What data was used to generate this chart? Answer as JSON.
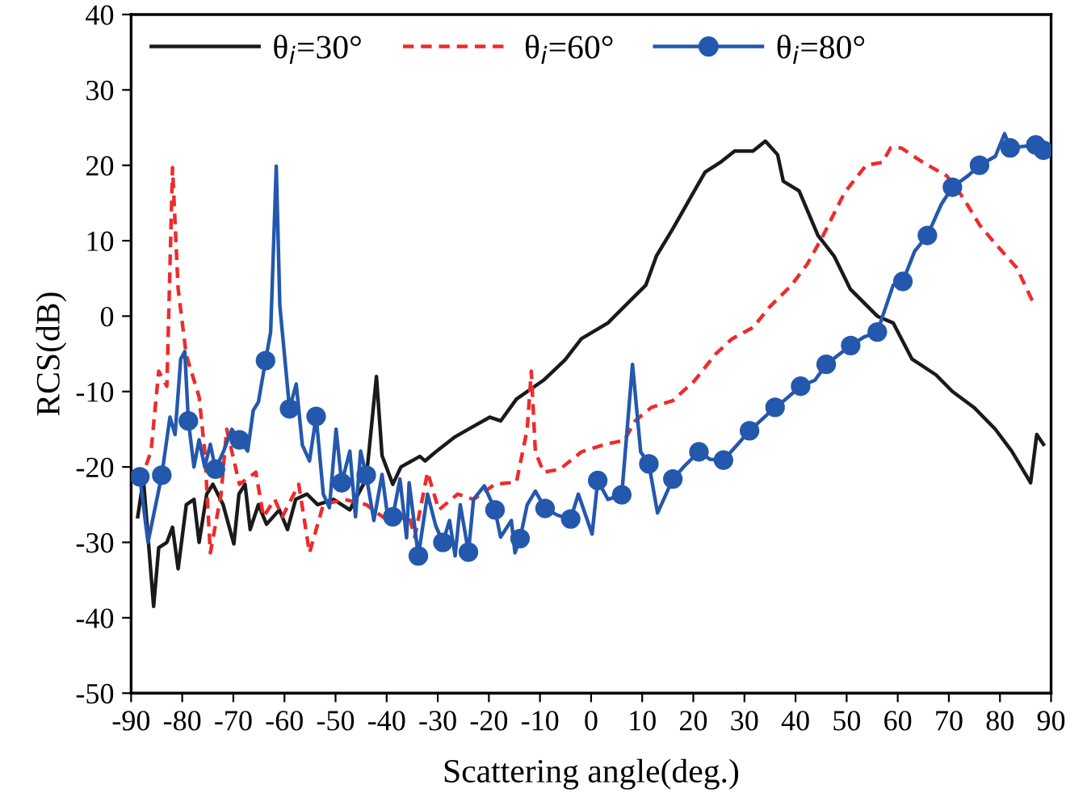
{
  "chart_data": {
    "type": "line",
    "xlabel": "Scattering angle(deg.)",
    "ylabel": "RCS(dB)",
    "xlim": [
      -90,
      90
    ],
    "xticks": [
      -90,
      -80,
      -70,
      -60,
      -50,
      -40,
      -30,
      -20,
      -10,
      0,
      10,
      20,
      30,
      40,
      50,
      60,
      70,
      80,
      90
    ],
    "ylim": [
      -50,
      40
    ],
    "yticks": [
      -50,
      -40,
      -30,
      -20,
      -10,
      0,
      10,
      20,
      30,
      40
    ],
    "grid": false,
    "legend": "top left",
    "series": [
      {
        "name": "θ$_{i}$=30°",
        "color": "#1a1a1a",
        "line_style": "solid",
        "marker": "none",
        "x": [
          -88.7,
          -87.6,
          -85.6,
          -84.6,
          -83,
          -81.9,
          -80.8,
          -79.2,
          -77.7,
          -76.7,
          -75.2,
          -74,
          -72,
          -69.9,
          -68.9,
          -67.7,
          -66.7,
          -65.1,
          -63.5,
          -61,
          -59.4,
          -57.8,
          -55.6,
          -53.5,
          -50.4,
          -47.2,
          -44,
          -42,
          -40.9,
          -38.8,
          -37.2,
          -33.5,
          -32.5,
          -30.4,
          -26.6,
          -23.5,
          -19.8,
          -17.7,
          -14.6,
          -9.3,
          -5.1,
          -1.9,
          3.3,
          10.7,
          12.8,
          16,
          20.2,
          22.3,
          25.5,
          28.1,
          31.7,
          34.1,
          36.5,
          37.6,
          40.7,
          44.4,
          47.6,
          50.7,
          56,
          59.1,
          62.8,
          67.5,
          70.7,
          74.9,
          79.1,
          82.3,
          86,
          87.2,
          88.5
        ],
        "values": [
          -26.6,
          -21.6,
          -38.5,
          -30.7,
          -30,
          -28,
          -33.5,
          -25,
          -24.3,
          -30,
          -23.6,
          -22.3,
          -25,
          -30.2,
          -23.6,
          -22.3,
          -28.3,
          -25,
          -27.6,
          -25.7,
          -28.3,
          -24.3,
          -23.6,
          -25,
          -24.3,
          -25.7,
          -21.6,
          -8,
          -18.5,
          -22.3,
          -20,
          -18.6,
          -19.2,
          -18,
          -16,
          -14.8,
          -13.4,
          -13.9,
          -11,
          -8.5,
          -5.8,
          -3,
          -0.9,
          4.1,
          8,
          11.6,
          16.6,
          19.1,
          20.5,
          21.9,
          21.9,
          23.2,
          21.4,
          17.9,
          16.6,
          10.7,
          7.9,
          3.6,
          0,
          -0.9,
          -5.7,
          -7.8,
          -10,
          -12.1,
          -15,
          -17.9,
          -22.1,
          -15.7,
          -17
        ]
      },
      {
        "name": "θ$_{i}$=60°",
        "color": "#ee2b2b",
        "line_style": "dashed",
        "marker": "none",
        "x": [
          -88.2,
          -86.1,
          -84.6,
          -83,
          -81.9,
          -80.8,
          -79.2,
          -76.7,
          -75.6,
          -74.5,
          -72.4,
          -71.3,
          -68.8,
          -65.6,
          -64.1,
          -61.9,
          -60.4,
          -57.2,
          -55.1,
          -52.4,
          -48.3,
          -44,
          -39.8,
          -35.6,
          -34.5,
          -32,
          -29.8,
          -26.1,
          -23,
          -18.8,
          -14.6,
          -12.5,
          -11.7,
          -10.9,
          -9.3,
          -6.1,
          -1.9,
          3.3,
          6.5,
          8.6,
          11.8,
          16,
          20.2,
          24.4,
          27.6,
          31.7,
          34.9,
          39.2,
          42.3,
          45.4,
          49.6,
          53.8,
          57,
          58.6,
          60.7,
          64.9,
          69.6,
          72.8,
          76,
          79.1,
          83.3,
          86.5
        ],
        "values": [
          -22,
          -17.9,
          -7.3,
          -9.3,
          19.7,
          3.6,
          -5.2,
          -10.7,
          -17.9,
          -31.4,
          -23.6,
          -15,
          -22.3,
          -20.7,
          -26.6,
          -24.3,
          -26.6,
          -22.3,
          -31.4,
          -25,
          -24.3,
          -25,
          -27.1,
          -26.6,
          -29.3,
          -20.7,
          -25.7,
          -23.6,
          -24.3,
          -22.3,
          -22,
          -15,
          -7.3,
          -18,
          -20.7,
          -20.3,
          -18,
          -16.9,
          -16.5,
          -13.9,
          -12.1,
          -11.2,
          -8.6,
          -5,
          -3,
          -1.5,
          1.2,
          4.1,
          6.9,
          10.7,
          16.4,
          20,
          20.4,
          22.3,
          22.3,
          20.4,
          18.6,
          15.7,
          12.1,
          9.6,
          6.4,
          1.8
        ]
      },
      {
        "color": "#2458ad",
        "line_style": "solid",
        "marker": "none",
        "x": [
          -88.3,
          -86.7,
          -84,
          -82.4,
          -81.4,
          -80.3,
          -79.5,
          -78.8,
          -77.7,
          -76.7,
          -75.6,
          -74.5,
          -73.5,
          -71.9,
          -70.3,
          -68.8,
          -67.2,
          -66.1,
          -65.1,
          -63.7,
          -62.7,
          -61.6,
          -60.9,
          -59,
          -57.7,
          -56.5,
          -55.1,
          -53.8,
          -52.4,
          -51.2,
          -49.9,
          -48.8,
          -47.2,
          -46.1,
          -45.1,
          -44,
          -42.5,
          -40.9,
          -39.8,
          -38.8,
          -37.4,
          -36.1,
          -35.6,
          -33.8,
          -32,
          -30.4,
          -29,
          -27.7,
          -26.6,
          -25.6,
          -24,
          -23,
          -20.9,
          -18.8,
          -17.7,
          -15.6,
          -14.9,
          -13.9,
          -12.5,
          -10.9,
          -9,
          -6.6,
          -4,
          -2.5,
          0.2,
          1.3,
          3.3,
          6,
          8.1,
          9.7,
          11.3,
          13,
          16,
          18.1,
          21.1,
          23.3,
          25.9,
          29.2,
          31,
          36,
          38.1,
          41,
          43.8,
          46,
          50.8,
          53.3,
          56,
          59.1,
          61,
          63.3,
          65.8,
          68.5,
          70.7,
          73.9,
          76,
          79.1,
          80.9,
          82,
          84.4,
          87,
          88.5
        ],
        "values": [
          -21.3,
          -30,
          -21.1,
          -13.4,
          -15.7,
          -5.7,
          -4.7,
          -13.9,
          -20,
          -16.4,
          -20,
          -17,
          -20.3,
          -17.9,
          -15,
          -16.4,
          -17.9,
          -12.5,
          -11.4,
          -5.9,
          -2.1,
          19.9,
          1.4,
          -12.3,
          -9,
          -17.1,
          -19.2,
          -13.3,
          -23.6,
          -25.4,
          -15,
          -22.1,
          -17.9,
          -26.6,
          -17.9,
          -21.1,
          -27.1,
          -21,
          -26.6,
          -26.6,
          -21.6,
          -29.4,
          -22.1,
          -31.8,
          -23.6,
          -27.8,
          -30,
          -27.1,
          -31.8,
          -25,
          -31.3,
          -24.3,
          -22.5,
          -25.7,
          -29.3,
          -27.1,
          -31.4,
          -29.5,
          -25,
          -23.2,
          -25.5,
          -26.4,
          -26.9,
          -23.6,
          -28.9,
          -21.8,
          -24.3,
          -23.7,
          -6.4,
          -18,
          -19.6,
          -26.1,
          -21.6,
          -20,
          -18,
          -19,
          -19.1,
          -16.6,
          -15.2,
          -12.1,
          -11,
          -9.3,
          -8.5,
          -6.4,
          -3.9,
          -2.8,
          -2.1,
          4.1,
          4.6,
          8.6,
          10.7,
          14.8,
          17.1,
          18.7,
          20,
          21.2,
          24.2,
          22.3,
          22.5,
          22.7,
          22
        ]
      },
      {
        "name": "θ$_{i}$=80°",
        "type": "scatter",
        "color": "#2458ad",
        "line_style": "solid",
        "marker": "circle",
        "x": [
          -88.3,
          -84,
          -78.8,
          -73.5,
          -68.8,
          -63.7,
          -59,
          -53.8,
          -48.8,
          -44,
          -38.8,
          -33.8,
          -29,
          -24,
          -18.8,
          -13.9,
          -9,
          -4,
          1.3,
          6,
          11.3,
          16,
          21.1,
          25.9,
          31,
          36,
          41,
          46,
          50.8,
          56,
          61,
          65.8,
          70.7,
          76,
          82,
          87,
          88.5
        ],
        "values": [
          -21.3,
          -21.1,
          -13.9,
          -20.3,
          -16.4,
          -5.9,
          -12.3,
          -13.3,
          -22.1,
          -21.1,
          -26.6,
          -31.8,
          -30,
          -31.3,
          -25.7,
          -29.5,
          -25.5,
          -26.9,
          -21.8,
          -23.7,
          -19.6,
          -21.6,
          -18,
          -19.1,
          -15.2,
          -12.1,
          -9.3,
          -6.4,
          -3.9,
          -2.1,
          4.6,
          10.7,
          17.1,
          20,
          22.3,
          22.7,
          22
        ]
      }
    ]
  }
}
